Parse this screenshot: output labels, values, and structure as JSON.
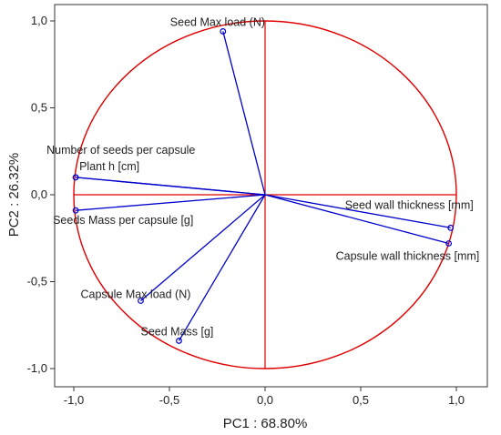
{
  "chart_data": {
    "type": "scatter",
    "subtype": "pca-correlation-circle",
    "xlabel": "PC1 : 68.80%",
    "ylabel": "PC2 : 26.32%",
    "xlim": [
      -1.1,
      1.1
    ],
    "ylim": [
      -1.05,
      1.05
    ],
    "x_ticks": [
      "-1,0",
      "-0,5",
      "0,0",
      "0,5",
      "1,0"
    ],
    "y_ticks": [
      "1,0",
      "0,5",
      "0,0",
      "-0,5",
      "-1,0"
    ],
    "x_tick_values": [
      -1.0,
      -0.5,
      0.0,
      0.5,
      1.0
    ],
    "y_tick_values": [
      1.0,
      0.5,
      0.0,
      -0.5,
      -1.0
    ],
    "circle_radius": 1.0,
    "colors": {
      "circle": "#e00000",
      "vectors": "#0000cc",
      "axes": "#e00000"
    },
    "points": [
      {
        "label": "Seed Max load (N)",
        "x": -0.22,
        "y": 0.94
      },
      {
        "label": "Number of seeds per capsule",
        "x": -0.99,
        "y": 0.1
      },
      {
        "label": "Plant h [cm]",
        "x": -0.99,
        "y": 0.1
      },
      {
        "label": "Seeds Mass per capsule [g]",
        "x": -0.99,
        "y": -0.09
      },
      {
        "label": "Seed wall thickness [mm]",
        "x": 0.97,
        "y": -0.19
      },
      {
        "label": "Capsule wall thickness [mm]",
        "x": 0.96,
        "y": -0.28
      },
      {
        "label": "Capsule Max load (N)",
        "x": -0.65,
        "y": -0.61
      },
      {
        "label": "Seed Mass [g]",
        "x": -0.45,
        "y": -0.84
      }
    ]
  }
}
